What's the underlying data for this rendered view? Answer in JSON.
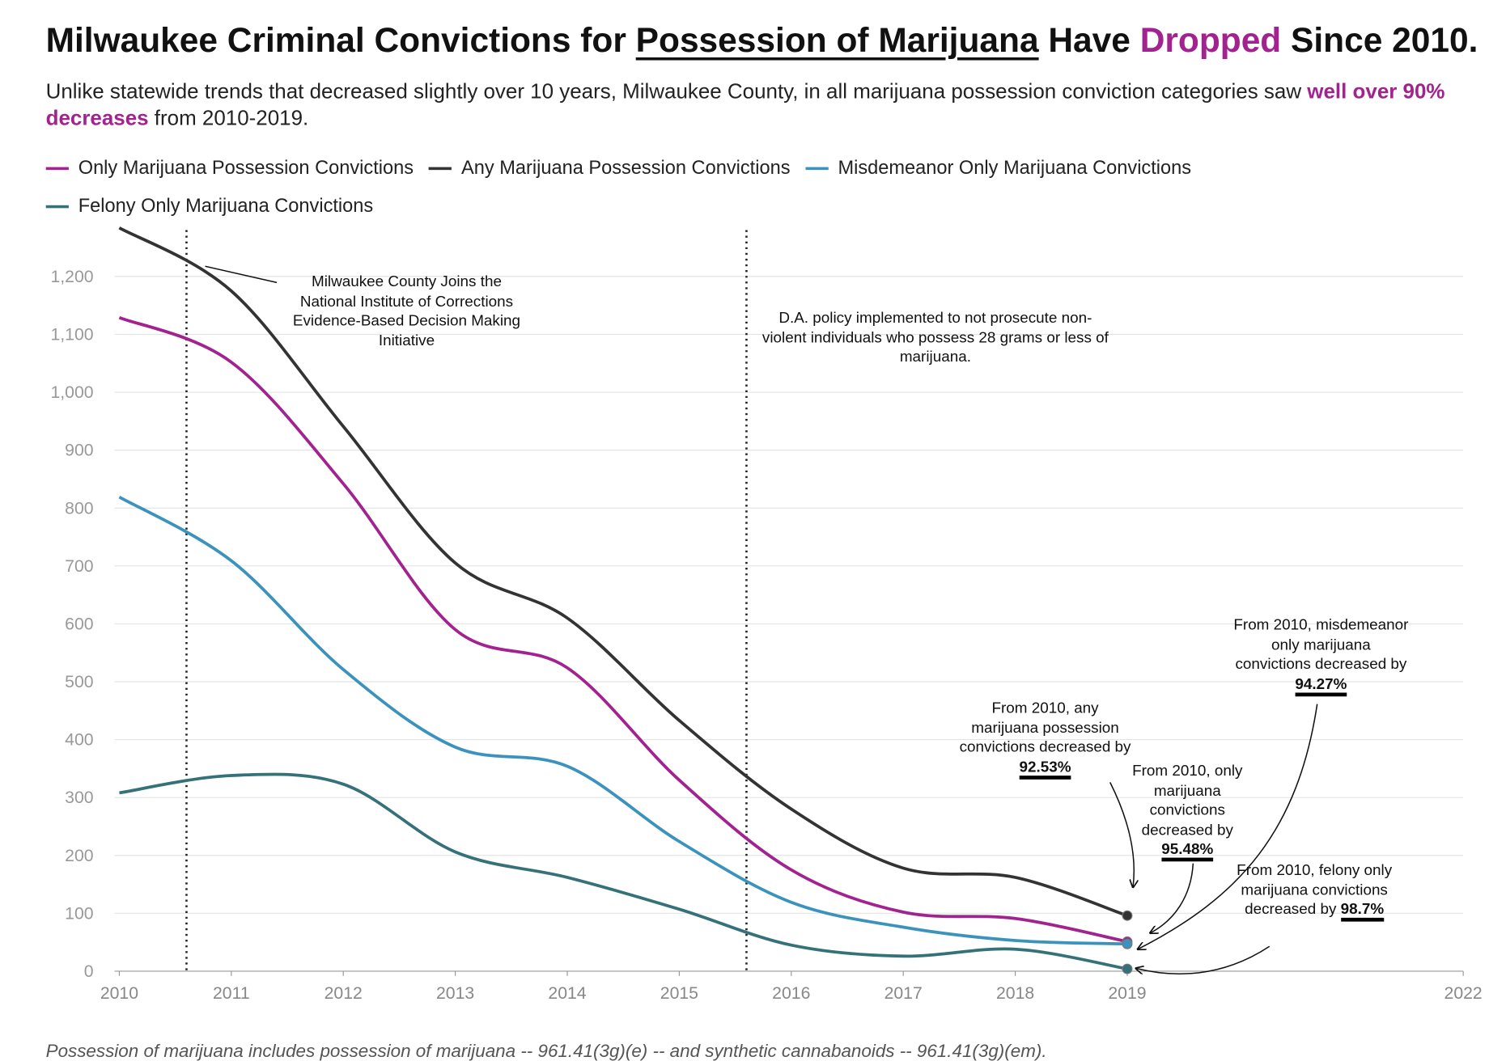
{
  "chart_data": {
    "type": "line",
    "title_parts": [
      {
        "text": "Milwaukee Criminal Convictions for "
      },
      {
        "text": "Possession of Marijuana",
        "underline": true
      },
      {
        "text": " Have "
      },
      {
        "text": "Dropped",
        "color": "#a2238f"
      },
      {
        "text": " Since 2010."
      }
    ],
    "subtitle_parts": [
      {
        "text": "Unlike statewide trends that decreased slightly over 10 years, Milwaukee County, in all marijuana possession conviction categories saw "
      },
      {
        "text": "well over 90% decreases",
        "color": "#a2238f",
        "bold": true
      },
      {
        "text": " from 2010-2019."
      }
    ],
    "x": [
      2010,
      2011,
      2012,
      2013,
      2014,
      2015,
      2016,
      2017,
      2018,
      2019
    ],
    "series": [
      {
        "name": "Only Marijuana Possession Convictions",
        "color": "#a2238f",
        "values": [
          1129,
          1052,
          842,
          590,
          524,
          330,
          175,
          102,
          91,
          51
        ]
      },
      {
        "name": "Any Marijuana Possession Convictions",
        "color": "#333333",
        "values": [
          1284,
          1175,
          941,
          705,
          610,
          433,
          280,
          178,
          162,
          96
        ]
      },
      {
        "name": "Misdemeanor Only Marijuana Convictions",
        "color": "#3b93bd",
        "values": [
          819,
          709,
          521,
          387,
          354,
          224,
          119,
          76,
          53,
          47
        ]
      },
      {
        "name": "Felony Only Marijuana Convictions",
        "color": "#357179",
        "values": [
          308,
          338,
          323,
          206,
          162,
          107,
          45,
          26,
          38,
          4
        ]
      }
    ],
    "xlim": [
      2010,
      2022
    ],
    "xticks": [
      2010,
      2011,
      2012,
      2013,
      2014,
      2015,
      2016,
      2017,
      2018,
      2019,
      2022
    ],
    "ylim": [
      0,
      1300
    ],
    "yticks": [
      0,
      100,
      200,
      300,
      400,
      500,
      600,
      700,
      800,
      900,
      {
        "value": 1000,
        "label": "1,000"
      },
      {
        "value": 1100,
        "label": "1,100"
      },
      {
        "value": 1200,
        "label": "1,200"
      }
    ],
    "grid": true,
    "reference_lines": [
      2010.6,
      2015.6
    ],
    "annotations": [
      {
        "text": "Milwaukee County Joins the National Institute of Corrections Evidence-Based Decision Making Initiative"
      },
      {
        "text": "D.A. policy implemented to not prosecute non-violent individuals who possess 28 grams or less of marijuana."
      },
      {
        "text": "From 2010, any marijuana possession convictions decreased by ",
        "highlight": "92.53%"
      },
      {
        "text": "From 2010, only marijuana convictions decreased by ",
        "highlight": "95.48%"
      },
      {
        "text": "From 2010, misdemeanor only marijuana convictions decreased by ",
        "highlight": "94.27%"
      },
      {
        "text": "From 2010, felony only marijuana convictions decreased by ",
        "highlight": "98.7%"
      }
    ],
    "footnote": "Possession of marijuana includes possession of marijuana -- 961.41(3g)(e) -- and synthetic cannabanoids -- 961.41(3g)(em)."
  }
}
